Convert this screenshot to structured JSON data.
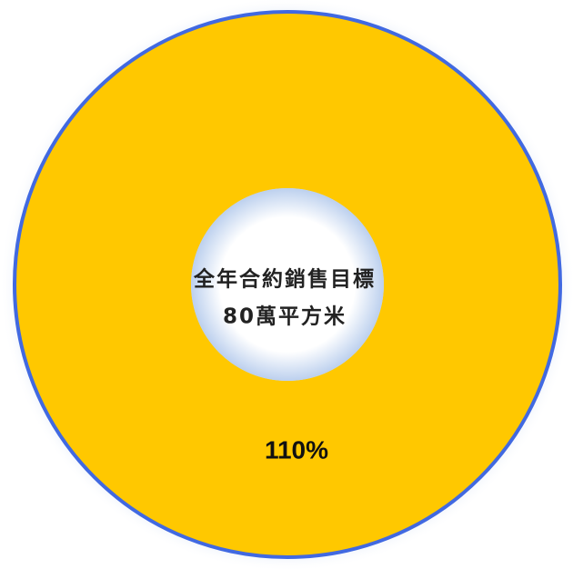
{
  "chart_data": {
    "type": "donut",
    "values": [
      110
    ],
    "value_labels": [
      "110%"
    ],
    "color": "#ffc800",
    "border_color": "#4169e1",
    "annotations": [
      "全年合約銷售目標",
      "80萬平方米"
    ]
  }
}
